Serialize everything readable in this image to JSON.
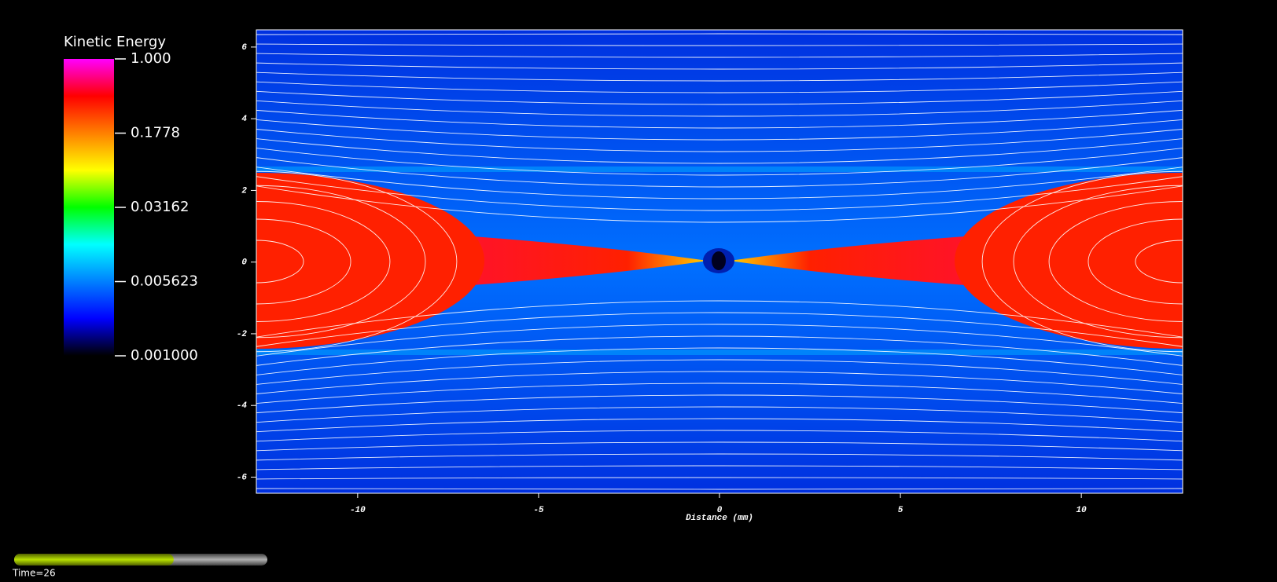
{
  "chart_data": {
    "type": "heatmap",
    "xlabel": "Distance (mm)",
    "xlim": [
      -12.8,
      12.8
    ],
    "xticks": [
      -10,
      -5,
      0,
      5,
      10
    ],
    "ylim": [
      -6.45,
      6.48
    ],
    "yticks": [
      -6,
      -4,
      -2,
      0,
      2,
      4,
      6
    ],
    "colorbar": {
      "title": "Kinetic Energy",
      "log": true,
      "lim": [
        0.001,
        1
      ],
      "ticks": [
        {
          "value": 1,
          "label": "1.000"
        },
        0.1778,
        0.03162,
        0.005623,
        {
          "value": 0.001,
          "label": "0.001000"
        }
      ],
      "colors": [
        "#ff00ff",
        "#ff0000",
        "#ff8000",
        "#ffff00",
        "#00ff00",
        "#00ffff",
        "#0080ff",
        "#0000ff",
        "#000000"
      ]
    }
  },
  "player": {
    "label": "Time=26",
    "progress": 0.63
  }
}
